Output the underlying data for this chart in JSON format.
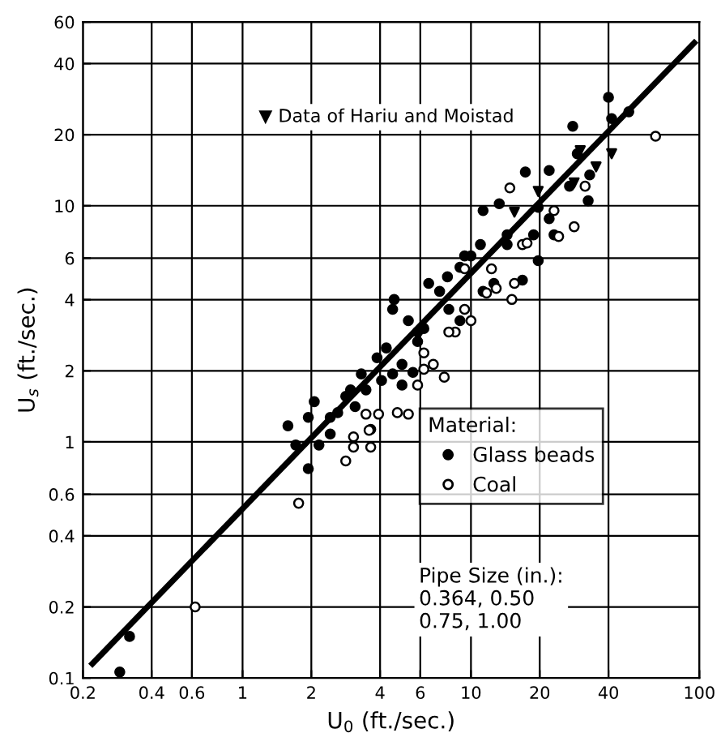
{
  "chart_data": {
    "type": "scatter",
    "xlabel": "U$_{0}$ (ft./sec.)",
    "ylabel": "U$_{s}$ (ft./sec.)",
    "legend_title": "Material:",
    "log": "xy",
    "xlim": [
      0.2,
      100
    ],
    "ylim": [
      0.1,
      60
    ],
    "xticks": [
      0.2,
      0.4,
      0.6,
      1,
      2,
      4,
      6,
      10,
      20,
      40,
      100
    ],
    "yticks": [
      0.1,
      0.2,
      0.4,
      0.6,
      1,
      2,
      4,
      6,
      10,
      20,
      40,
      60
    ],
    "grid": true,
    "legend": "bottom right",
    "annotations": [
      "▼ Data of Hariu and Moistad",
      "Pipe Size (in.):\n0.364, 0.50\n0.75, 1.00"
    ],
    "series": [
      {
        "name": "Glass beads",
        "color": "#000000",
        "marker": "circle",
        "x": [
          1.58,
          1.71,
          1.94,
          1.94,
          2.16,
          2.42,
          2.61,
          2.83,
          3.11,
          3.47,
          3.64,
          4.06,
          4.54,
          4.99,
          4.61,
          4.54,
          5.32,
          5.84,
          5.84,
          6.22,
          6.53,
          7.29,
          7.89,
          8.0,
          8.95,
          10.0,
          11.0,
          11.3,
          12.6,
          14.4,
          16.8,
          19.7,
          5.57,
          4.99,
          3.31,
          2.97,
          2.06,
          2.42,
          3.88,
          4.26,
          8.95,
          11.3,
          13.3,
          17.3,
          22.0,
          27.9,
          29.2,
          40.0,
          49.1,
          41.3,
          27.0,
          32.6,
          33.1,
          19.7,
          22.0,
          14.4,
          18.8,
          23.1,
          9.38,
          0.29,
          0.32
        ],
        "values": [
          1.17,
          0.97,
          1.27,
          0.77,
          0.97,
          1.08,
          1.33,
          1.56,
          1.41,
          1.66,
          1.13,
          1.82,
          1.94,
          2.13,
          4.01,
          3.64,
          3.26,
          2.92,
          2.66,
          3.02,
          4.69,
          4.34,
          5.0,
          3.64,
          5.49,
          6.13,
          6.85,
          4.34,
          4.69,
          6.85,
          4.84,
          5.85,
          1.97,
          1.74,
          1.94,
          1.66,
          1.48,
          1.27,
          2.27,
          2.5,
          3.26,
          9.54,
          10.2,
          13.9,
          14.1,
          21.7,
          16.6,
          28.8,
          25.0,
          23.4,
          12.1,
          10.5,
          13.5,
          9.84,
          8.81,
          7.53,
          7.53,
          7.53,
          6.13,
          0.106,
          0.15
        ]
      },
      {
        "name": "Coal",
        "color": "#000000",
        "marker": "circle",
        "x": [
          2.83,
          3.06,
          3.64,
          3.94,
          4.76,
          5.32,
          3.47,
          3.58,
          3.06,
          6.22,
          6.84,
          7.64,
          5.84,
          6.22,
          8.53,
          8.0,
          10.0,
          9.38,
          11.7,
          12.9,
          15.1,
          15.5,
          12.3,
          9.38,
          16.8,
          14.8,
          23.1,
          28.3,
          31.6,
          64.3,
          24.2,
          17.6,
          1.76,
          0.62
        ],
        "values": [
          0.83,
          0.95,
          0.95,
          1.31,
          1.33,
          1.31,
          1.31,
          1.12,
          1.05,
          2.03,
          2.13,
          1.88,
          1.74,
          2.38,
          2.92,
          2.92,
          3.26,
          3.64,
          4.27,
          4.47,
          4.01,
          4.69,
          5.41,
          5.41,
          6.85,
          11.9,
          9.54,
          8.15,
          12.1,
          19.7,
          7.41,
          6.95,
          0.55,
          0.2
        ]
      },
      {
        "color": "#000000",
        "marker": "triangle",
        "x": [
          35.3,
          41.3,
          30.1,
          15.5,
          19.7,
          28.3
        ],
        "values": [
          14.6,
          16.6,
          17.1,
          9.39,
          11.5,
          12.5
        ]
      },
      {
        "type": "line",
        "color": "#000000",
        "x": [
          0.22,
          95
        ],
        "values": [
          0.115,
          49
        ]
      }
    ]
  }
}
